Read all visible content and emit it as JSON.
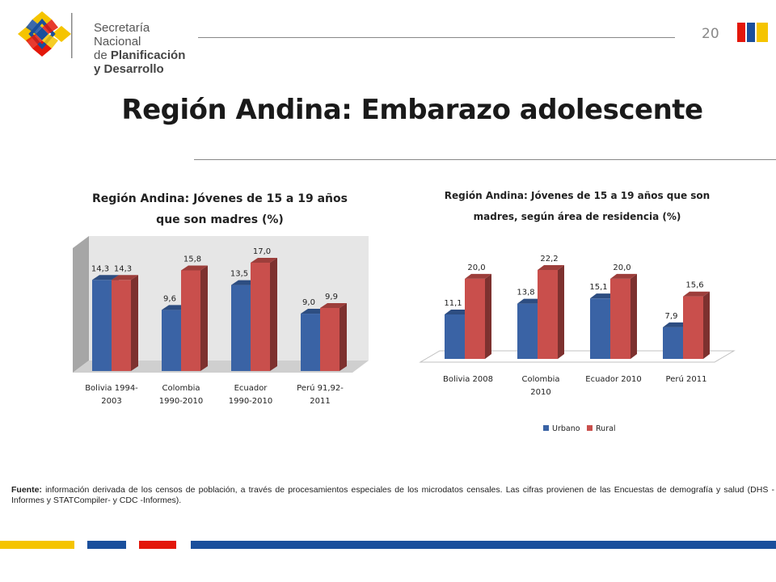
{
  "header": {
    "logo_line1": "Secretaría Nacional",
    "logo_line2_prefix": "de ",
    "logo_line2_bold": "Planificación",
    "logo_line3": "y Desarrollo",
    "page_number": "20",
    "flag_colors": [
      "#e3170a",
      "#1a4f9c",
      "#f5c400"
    ]
  },
  "title": "Región Andina: Embarazo adolescente",
  "colors": {
    "urbano": "#3a63a5",
    "rural": "#c94f4c",
    "floor": "#dcdcdc"
  },
  "chart_data": [
    {
      "type": "bar",
      "title_line1": "Región Andina: Jóvenes de 15 a 19 años",
      "title_line2": "que son madres (%)",
      "categories": [
        [
          "Bolivia 1994-",
          "2003"
        ],
        [
          "Colombia",
          "1990-2010"
        ],
        [
          "Ecuador",
          "1990-2010"
        ],
        [
          "Perú 91,92-",
          "2011"
        ]
      ],
      "series": [
        {
          "values": [
            14.3,
            9.6,
            13.5,
            9.0
          ],
          "labels": [
            "14,3",
            "9,6",
            "13,5",
            "9,0"
          ]
        },
        {
          "values": [
            14.3,
            15.8,
            17.0,
            9.9
          ],
          "labels": [
            "14,3",
            "15,8",
            "17,0",
            "9,9"
          ]
        }
      ],
      "grid": false,
      "legend": "none"
    },
    {
      "type": "bar",
      "title_line1": "Región Andina: Jóvenes de 15 a 19 años que son",
      "title_line2": "madres, según área de residencia (%)",
      "categories": [
        [
          "Bolivia 2008"
        ],
        [
          "Colombia",
          "2010"
        ],
        [
          "Ecuador 2010"
        ],
        [
          "Perú 2011"
        ]
      ],
      "series": [
        {
          "name": "Urbano",
          "values": [
            11.1,
            13.8,
            15.1,
            7.9
          ],
          "labels": [
            "11,1",
            "13,8",
            "15,1",
            "7,9"
          ]
        },
        {
          "name": "Rural",
          "values": [
            20.0,
            22.2,
            20.0,
            15.6
          ],
          "labels": [
            "20,0",
            "22,2",
            "20,0",
            "15,6"
          ]
        }
      ],
      "grid": false,
      "legend": "bottom"
    }
  ],
  "source": {
    "label": "Fuente:",
    "text": " información derivada de los censos de población, a través de procesamientos especiales de los microdatos censales. Las cifras provienen de las Encuestas de demografía y salud (DHS -Informes y STATCompiler- y CDC -Informes)."
  },
  "footer_colors": [
    "#f5c400",
    "#1a4f9c",
    "#e3170a",
    "#1a4f9c"
  ]
}
